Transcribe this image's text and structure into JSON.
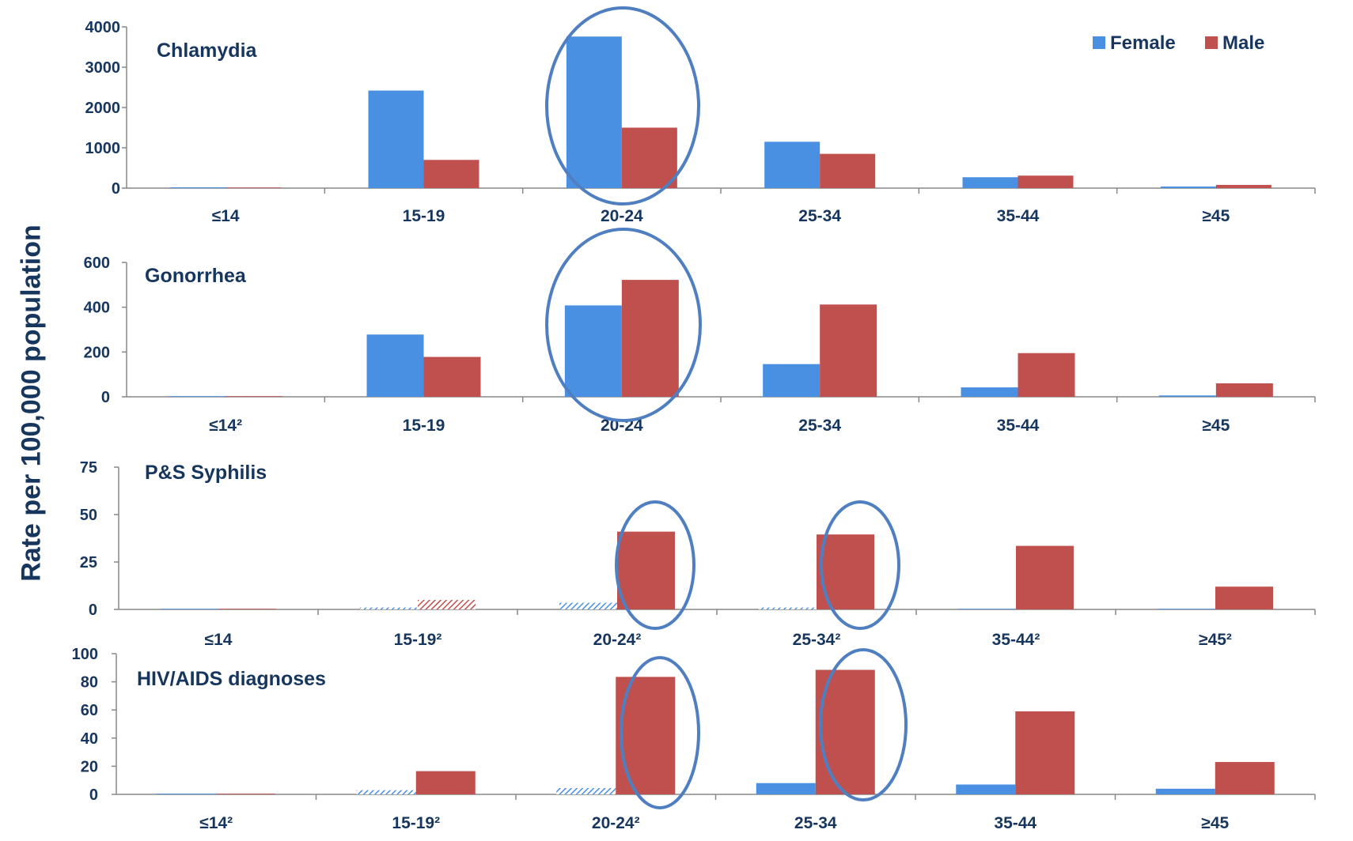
{
  "y_axis_title": "Rate per 100,000 population",
  "legend": [
    {
      "label": "Female",
      "color": "#4a90e2"
    },
    {
      "label": "Male",
      "color": "#c0504d"
    }
  ],
  "colors": {
    "female": "#4a90e2",
    "male": "#c0504d",
    "circle": "#4f7fc1",
    "text": "#17365d",
    "axis": "#888888"
  },
  "chart_data": [
    {
      "type": "bar",
      "title": "Chlamydia",
      "categories": [
        "≤14",
        "15-19",
        "20-24",
        "25-34",
        "35-44",
        "≥45"
      ],
      "yticks": [
        "0",
        "1000",
        "2000",
        "3000",
        "4000"
      ],
      "ylim": [
        0,
        4000
      ],
      "series": [
        {
          "name": "Female",
          "values": [
            20,
            2420,
            3760,
            1150,
            270,
            40
          ]
        },
        {
          "name": "Male",
          "values": [
            2,
            700,
            1500,
            850,
            310,
            80
          ]
        }
      ],
      "hatched": [],
      "highlighted_categories": [
        "20-24"
      ],
      "legend": "top-right"
    },
    {
      "type": "bar",
      "title": "Gonorrhea",
      "categories": [
        "≤14²",
        "15-19",
        "20-24",
        "25-34",
        "35-44",
        "≥45"
      ],
      "yticks": [
        "0",
        "200",
        "400",
        "600"
      ],
      "ylim": [
        0,
        600
      ],
      "series": [
        {
          "name": "Female",
          "values": [
            2,
            278,
            408,
            146,
            42,
            6
          ]
        },
        {
          "name": "Male",
          "values": [
            1,
            178,
            522,
            412,
            195,
            60
          ]
        }
      ],
      "hatched": [],
      "highlighted_categories": [
        "20-24"
      ]
    },
    {
      "type": "bar",
      "title": "P&S Syphilis",
      "categories": [
        "≤14",
        "15-19²",
        "20-24²",
        "25-34²",
        "35-44²",
        "≥45²"
      ],
      "yticks": [
        "0",
        "25",
        "50",
        "75"
      ],
      "ylim": [
        0,
        75
      ],
      "series": [
        {
          "name": "Female",
          "values": [
            0,
            1,
            3.5,
            1,
            0,
            0
          ]
        },
        {
          "name": "Male",
          "values": [
            0,
            5,
            41,
            39.5,
            33.5,
            12
          ]
        }
      ],
      "hatched": [
        [
          0,
          1
        ],
        [
          1,
          1
        ],
        [
          0,
          2
        ],
        [
          0,
          3
        ]
      ],
      "highlighted_categories": [
        "20-24²",
        "25-34²"
      ]
    },
    {
      "type": "bar",
      "title": "HIV/AIDS diagnoses",
      "categories": [
        "≤14²",
        "15-19²",
        "20-24²",
        "25-34",
        "35-44",
        "≥45"
      ],
      "yticks": [
        "0",
        "20",
        "40",
        "60",
        "80",
        "100"
      ],
      "ylim": [
        0,
        100
      ],
      "series": [
        {
          "name": "Female",
          "values": [
            0.5,
            3,
            4.5,
            8,
            7,
            4
          ]
        },
        {
          "name": "Male",
          "values": [
            0.5,
            16.5,
            83.5,
            88.5,
            59,
            23
          ]
        }
      ],
      "hatched": [
        [
          0,
          1
        ],
        [
          0,
          2
        ]
      ],
      "highlighted_categories": [
        "20-24²",
        "25-34"
      ]
    }
  ]
}
